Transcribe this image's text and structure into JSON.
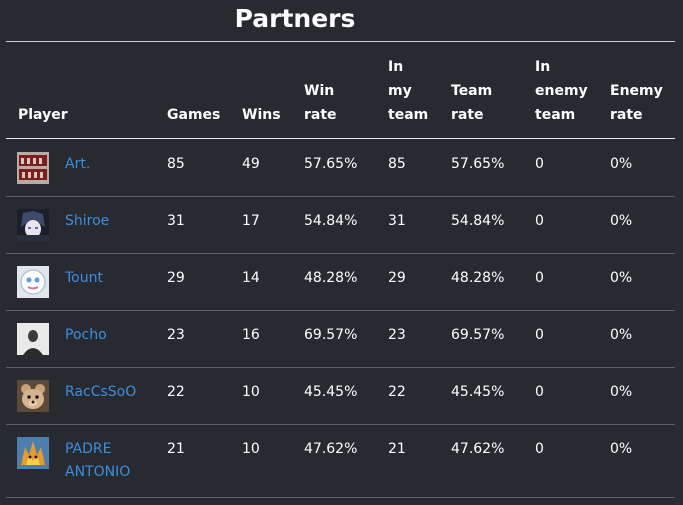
{
  "title": "Partners",
  "headers": {
    "player": "Player",
    "games": "Games",
    "wins": "Wins",
    "win_rate": [
      "Win",
      "rate"
    ],
    "in_my_team": [
      "In",
      "my",
      "team"
    ],
    "team_rate": [
      "Team",
      "rate"
    ],
    "in_enemy_team": [
      "In",
      "enemy",
      "team"
    ],
    "enemy_rate": [
      "Enemy",
      "rate"
    ]
  },
  "rows": [
    {
      "name": "Art.",
      "avatar": "feel-pain-avatar",
      "games": "85",
      "wins": "49",
      "win_rate": "57.65%",
      "in_my_team": "85",
      "team_rate": "57.65%",
      "in_enemy_team": "0",
      "enemy_rate": "0%"
    },
    {
      "name": "Shiroe",
      "avatar": "anime-character-avatar",
      "games": "31",
      "wins": "17",
      "win_rate": "54.84%",
      "in_my_team": "31",
      "team_rate": "54.84%",
      "in_enemy_team": "0",
      "enemy_rate": "0%"
    },
    {
      "name": "Tount",
      "avatar": "cartoon-face-avatar",
      "games": "29",
      "wins": "14",
      "win_rate": "48.28%",
      "in_my_team": "29",
      "team_rate": "48.28%",
      "in_enemy_team": "0",
      "enemy_rate": "0%"
    },
    {
      "name": "Pocho",
      "avatar": "portrait-photo-avatar",
      "games": "23",
      "wins": "16",
      "win_rate": "69.57%",
      "in_my_team": "23",
      "team_rate": "69.57%",
      "in_enemy_team": "0",
      "enemy_rate": "0%"
    },
    {
      "name": "RacCsSoO",
      "avatar": "teddy-bear-avatar",
      "games": "22",
      "wins": "10",
      "win_rate": "45.45%",
      "in_my_team": "22",
      "team_rate": "45.45%",
      "in_enemy_team": "0",
      "enemy_rate": "0%"
    },
    {
      "name": [
        "PADRE",
        "ANTONIO"
      ],
      "avatar": "fire-creature-avatar",
      "games": "21",
      "wins": "10",
      "win_rate": "47.62%",
      "in_my_team": "21",
      "team_rate": "47.62%",
      "in_enemy_team": "0",
      "enemy_rate": "0%"
    }
  ]
}
